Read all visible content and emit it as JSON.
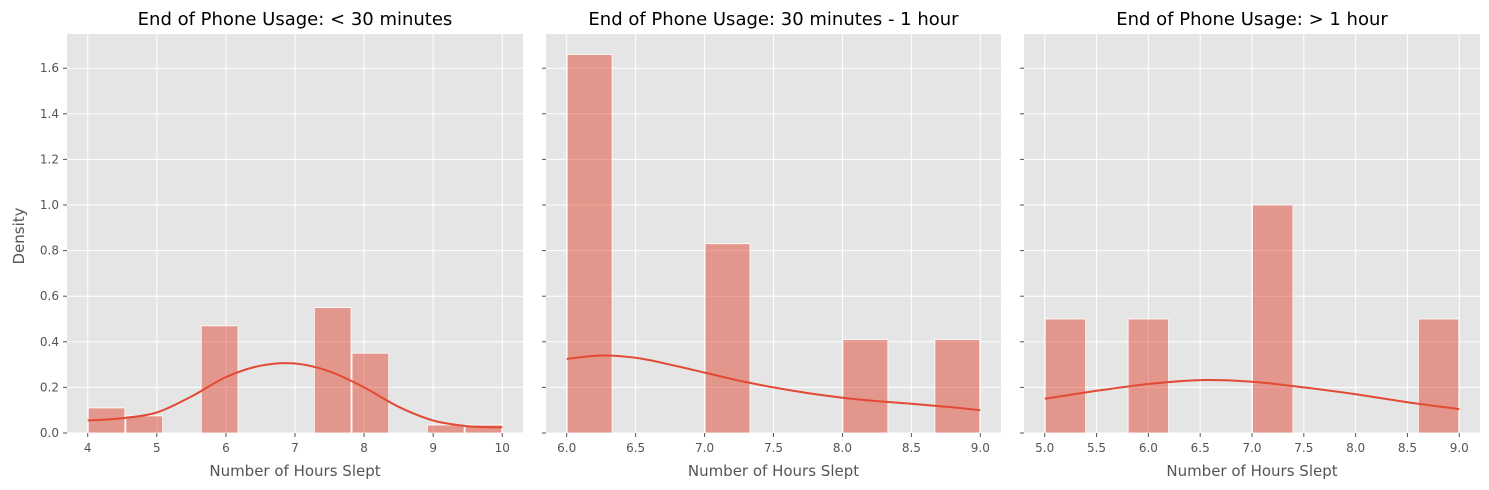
{
  "figure": {
    "shared_ylabel": "Density",
    "colors": {
      "axes_bg": "#e5e5e5",
      "grid": "#ffffff",
      "bar_fill": "#e24a33",
      "bar_opacity": 0.5,
      "kde_line": "#e24a33",
      "text": "#555555",
      "title": "#000000"
    }
  },
  "chart_data": [
    {
      "type": "bar",
      "title": "End of Phone Usage: < 30 minutes",
      "xlabel": "Number of Hours Slept",
      "ylabel": "Density",
      "xlim": [
        3.7,
        10.3
      ],
      "ylim": [
        0,
        1.75
      ],
      "x_ticks": [
        4,
        5,
        6,
        7,
        8,
        9,
        10
      ],
      "x_tick_labels": [
        "4",
        "5",
        "6",
        "7",
        "8",
        "9",
        "10"
      ],
      "y_ticks": [
        0.0,
        0.2,
        0.4,
        0.6,
        0.8,
        1.0,
        1.2,
        1.4,
        1.6
      ],
      "y_tick_labels": [
        "0.0",
        "0.2",
        "0.4",
        "0.6",
        "0.8",
        "1.0",
        "1.2",
        "1.4",
        "1.6"
      ],
      "grid": true,
      "histogram": [
        {
          "x0": 4.0,
          "x1": 4.545,
          "density": 0.11
        },
        {
          "x0": 4.545,
          "x1": 5.091,
          "density": 0.075
        },
        {
          "x0": 5.091,
          "x1": 5.636,
          "density": 0.0
        },
        {
          "x0": 5.636,
          "x1": 6.182,
          "density": 0.47
        },
        {
          "x0": 6.182,
          "x1": 6.727,
          "density": 0.0
        },
        {
          "x0": 6.727,
          "x1": 7.273,
          "density": 0.0
        },
        {
          "x0": 7.273,
          "x1": 7.818,
          "density": 0.55
        },
        {
          "x0": 7.818,
          "x1": 8.364,
          "density": 0.35
        },
        {
          "x0": 8.364,
          "x1": 8.909,
          "density": 0.0
        },
        {
          "x0": 8.909,
          "x1": 9.455,
          "density": 0.035
        },
        {
          "x0": 9.455,
          "x1": 10.0,
          "density": 0.035
        }
      ],
      "kde": [
        {
          "x": 4.0,
          "y": 0.055
        },
        {
          "x": 4.5,
          "y": 0.065
        },
        {
          "x": 5.0,
          "y": 0.09
        },
        {
          "x": 5.5,
          "y": 0.16
        },
        {
          "x": 6.0,
          "y": 0.245
        },
        {
          "x": 6.5,
          "y": 0.295
        },
        {
          "x": 7.0,
          "y": 0.305
        },
        {
          "x": 7.5,
          "y": 0.27
        },
        {
          "x": 8.0,
          "y": 0.2
        },
        {
          "x": 8.5,
          "y": 0.115
        },
        {
          "x": 9.0,
          "y": 0.055
        },
        {
          "x": 9.5,
          "y": 0.03
        },
        {
          "x": 10.0,
          "y": 0.025
        }
      ]
    },
    {
      "type": "bar",
      "title": "End of Phone Usage: 30 minutes - 1 hour",
      "xlabel": "Number of Hours Slept",
      "ylabel": "",
      "xlim": [
        5.85,
        9.15
      ],
      "ylim": [
        0,
        1.75
      ],
      "x_ticks": [
        6.0,
        6.5,
        7.0,
        7.5,
        8.0,
        8.5,
        9.0
      ],
      "x_tick_labels": [
        "6.0",
        "6.5",
        "7.0",
        "7.5",
        "8.0",
        "8.5",
        "9.0"
      ],
      "y_ticks": [
        0.0,
        0.2,
        0.4,
        0.6,
        0.8,
        1.0,
        1.2,
        1.4,
        1.6
      ],
      "y_tick_labels": [],
      "grid": true,
      "histogram": [
        {
          "x0": 6.0,
          "x1": 6.333,
          "density": 1.66
        },
        {
          "x0": 6.333,
          "x1": 6.667,
          "density": 0.0
        },
        {
          "x0": 6.667,
          "x1": 7.0,
          "density": 0.0
        },
        {
          "x0": 7.0,
          "x1": 7.333,
          "density": 0.83
        },
        {
          "x0": 7.333,
          "x1": 7.667,
          "density": 0.0
        },
        {
          "x0": 7.667,
          "x1": 8.0,
          "density": 0.0
        },
        {
          "x0": 8.0,
          "x1": 8.333,
          "density": 0.41
        },
        {
          "x0": 8.333,
          "x1": 8.667,
          "density": 0.0
        },
        {
          "x0": 8.667,
          "x1": 9.0,
          "density": 0.41
        }
      ],
      "kde": [
        {
          "x": 6.0,
          "y": 0.325
        },
        {
          "x": 6.25,
          "y": 0.34
        },
        {
          "x": 6.5,
          "y": 0.33
        },
        {
          "x": 6.75,
          "y": 0.3
        },
        {
          "x": 7.0,
          "y": 0.265
        },
        {
          "x": 7.25,
          "y": 0.23
        },
        {
          "x": 7.5,
          "y": 0.2
        },
        {
          "x": 7.75,
          "y": 0.175
        },
        {
          "x": 8.0,
          "y": 0.155
        },
        {
          "x": 8.25,
          "y": 0.14
        },
        {
          "x": 8.5,
          "y": 0.128
        },
        {
          "x": 8.75,
          "y": 0.115
        },
        {
          "x": 9.0,
          "y": 0.1
        }
      ]
    },
    {
      "type": "bar",
      "title": "End of Phone Usage: > 1 hour",
      "xlabel": "Number of Hours Slept",
      "ylabel": "",
      "xlim": [
        4.8,
        9.2
      ],
      "ylim": [
        0,
        1.75
      ],
      "x_ticks": [
        5.0,
        5.5,
        6.0,
        6.5,
        7.0,
        7.5,
        8.0,
        8.5,
        9.0
      ],
      "x_tick_labels": [
        "5.0",
        "5.5",
        "6.0",
        "6.5",
        "7.0",
        "7.5",
        "8.0",
        "8.5",
        "9.0"
      ],
      "y_ticks": [
        0.0,
        0.2,
        0.4,
        0.6,
        0.8,
        1.0,
        1.2,
        1.4,
        1.6
      ],
      "y_tick_labels": [],
      "grid": true,
      "histogram": [
        {
          "x0": 5.0,
          "x1": 5.4,
          "density": 0.5
        },
        {
          "x0": 5.4,
          "x1": 5.8,
          "density": 0.0
        },
        {
          "x0": 5.8,
          "x1": 6.2,
          "density": 0.5
        },
        {
          "x0": 6.2,
          "x1": 6.6,
          "density": 0.0
        },
        {
          "x0": 6.6,
          "x1": 7.0,
          "density": 0.0
        },
        {
          "x0": 7.0,
          "x1": 7.4,
          "density": 1.0
        },
        {
          "x0": 7.4,
          "x1": 7.8,
          "density": 0.0
        },
        {
          "x0": 7.8,
          "x1": 8.2,
          "density": 0.0
        },
        {
          "x0": 8.2,
          "x1": 8.6,
          "density": 0.0
        },
        {
          "x0": 8.6,
          "x1": 9.0,
          "density": 0.5
        }
      ],
      "kde": [
        {
          "x": 5.0,
          "y": 0.15
        },
        {
          "x": 5.5,
          "y": 0.185
        },
        {
          "x": 6.0,
          "y": 0.215
        },
        {
          "x": 6.5,
          "y": 0.232
        },
        {
          "x": 7.0,
          "y": 0.225
        },
        {
          "x": 7.5,
          "y": 0.2
        },
        {
          "x": 8.0,
          "y": 0.17
        },
        {
          "x": 8.5,
          "y": 0.135
        },
        {
          "x": 9.0,
          "y": 0.105
        }
      ]
    }
  ]
}
